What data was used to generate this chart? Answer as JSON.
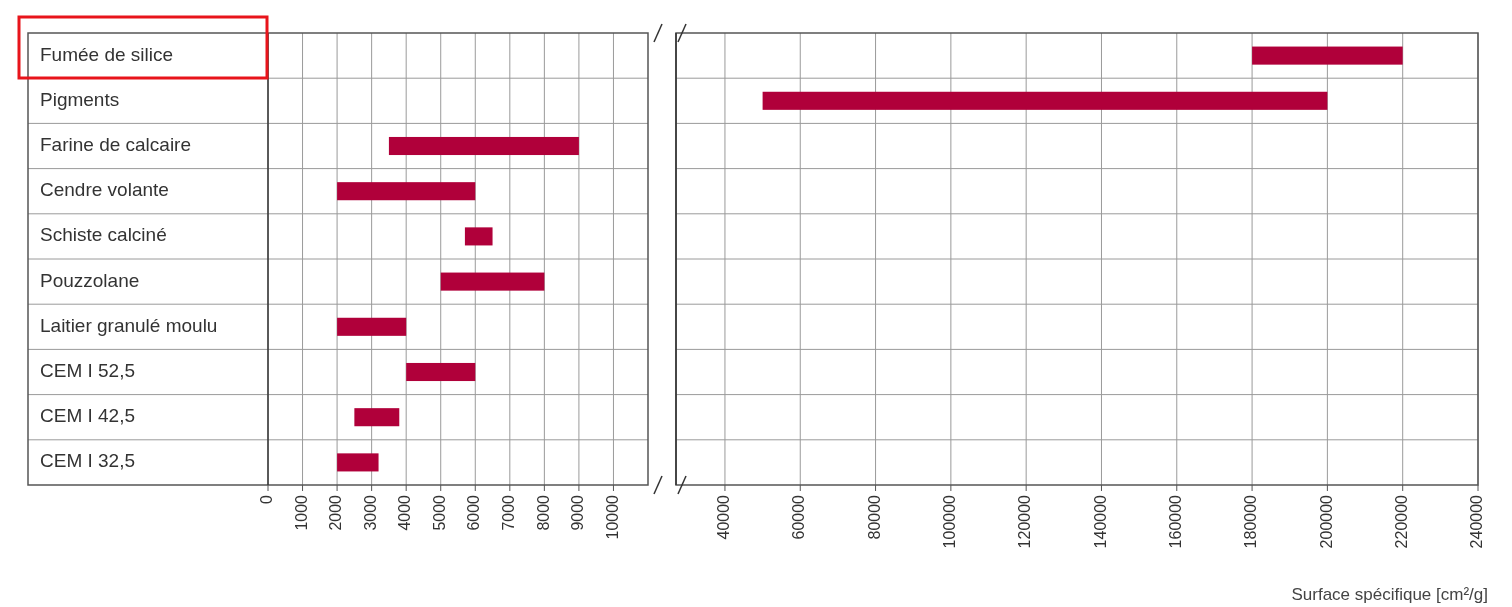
{
  "chart_data": [
    {
      "type": "bar",
      "orientation": "horizontal",
      "categories": [
        "Fumée de silice",
        "Pigments",
        "Farine de calcaire",
        "Cendre volante",
        "Schiste calciné",
        "Pouzzolane",
        "Laitier granulé moulu",
        "CEM I 52,5",
        "CEM I 42,5",
        "CEM I 32,5"
      ],
      "base": [
        null,
        null,
        3500,
        2000,
        5700,
        5000,
        2000,
        4000,
        2500,
        2000
      ],
      "values": [
        null,
        null,
        5500,
        4000,
        800,
        3000,
        2000,
        2000,
        1300,
        1200
      ],
      "color": "#b0003a",
      "xlim": [
        0,
        11000
      ],
      "xticks": [
        0,
        1000,
        2000,
        3000,
        4000,
        5000,
        6000,
        7000,
        8000,
        9000,
        10000
      ],
      "grid": true
    },
    {
      "type": "bar",
      "orientation": "horizontal",
      "categories": [
        null,
        null,
        null,
        null,
        null,
        null,
        null,
        null,
        null,
        null
      ],
      "base": [
        180000,
        50000,
        null,
        null,
        null,
        null,
        null,
        null,
        null,
        null
      ],
      "values": [
        40000,
        150000,
        null,
        null,
        null,
        null,
        null,
        null,
        null,
        null
      ],
      "color": "#b0003a",
      "xlim": [
        27000,
        240000
      ],
      "xticks": [
        40000,
        60000,
        80000,
        100000,
        120000,
        140000,
        160000,
        180000,
        200000,
        220000,
        240000
      ],
      "grid": true,
      "tick_labels": "x",
      "xlabel": "Surface spécifique [cm²/g]"
    }
  ]
}
